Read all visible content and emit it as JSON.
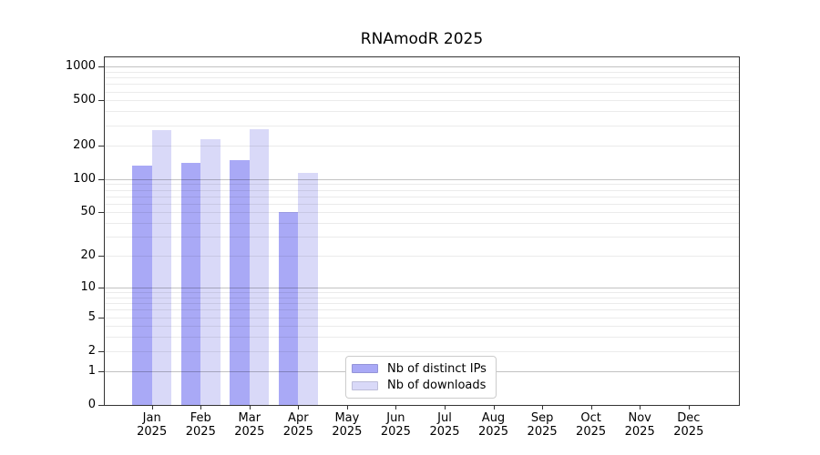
{
  "chart_data": {
    "type": "bar",
    "title": "RNAmodR 2025",
    "year_label": "2025",
    "categories": [
      "Jan",
      "Feb",
      "Mar",
      "Apr",
      "May",
      "Jun",
      "Jul",
      "Aug",
      "Sep",
      "Oct",
      "Nov",
      "Dec"
    ],
    "series": [
      {
        "name": "Nb of distinct IPs",
        "color": "#a9a9f6",
        "values": [
          131,
          140,
          146,
          50,
          0,
          0,
          0,
          0,
          0,
          0,
          0,
          0
        ]
      },
      {
        "name": "Nb of downloads",
        "color": "#d9d9f8",
        "values": [
          270,
          226,
          280,
          113,
          0,
          0,
          0,
          0,
          0,
          0,
          0,
          0
        ]
      }
    ],
    "y_ticks": [
      0,
      1,
      2,
      5,
      10,
      20,
      50,
      100,
      200,
      500,
      1000
    ],
    "y_scale": "log10(value+1)",
    "y_axis_top": 1230,
    "ylim": [
      0,
      1230
    ],
    "grid": {
      "minor_color": "rgba(0,0,0,0.08)",
      "major_color": "rgba(0,0,0,0.24)",
      "major_values": [
        1,
        10,
        100,
        1000
      ]
    },
    "legend_position": "bottom-center",
    "colors": {
      "axis": "#333333",
      "text": "#000000",
      "legend_border": "#cccccc",
      "background": "#ffffff"
    }
  }
}
